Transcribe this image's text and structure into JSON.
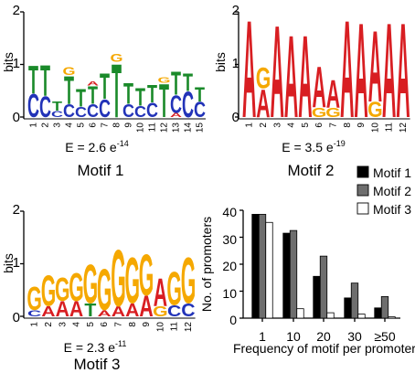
{
  "colors": {
    "A": "#d81e22",
    "C": "#2233b8",
    "G": "#f5a800",
    "T": "#1a8a2a",
    "bar_motif1": "#000000",
    "bar_motif2": "#6e6e6e",
    "bar_motif3": "#ffffff"
  },
  "logo_axis": {
    "label": "bits",
    "ticks": [
      "0",
      "1",
      "2"
    ]
  },
  "motifs": [
    {
      "name": "Motif 1",
      "evalue_base": "E = 2.6 e",
      "evalue_exp": "-14",
      "positions": [
        "1",
        "2",
        "3",
        "4",
        "5",
        "6",
        "7",
        "8",
        "9",
        "10",
        "11",
        "12",
        "13",
        "14",
        "15"
      ],
      "columns": [
        [
          [
            "C",
            0.45
          ],
          [
            "T",
            0.55
          ]
        ],
        [
          [
            "C",
            0.4
          ],
          [
            "T",
            0.6
          ]
        ],
        [
          [
            "C",
            0.12
          ],
          [
            "T",
            0.18
          ]
        ],
        [
          [
            "C",
            0.25
          ],
          [
            "T",
            0.55
          ],
          [
            "G",
            0.15
          ]
        ],
        [
          [
            "C",
            0.2
          ],
          [
            "T",
            0.35
          ]
        ],
        [
          [
            "C",
            0.25
          ],
          [
            "T",
            0.35
          ],
          [
            "A",
            0.08
          ]
        ],
        [
          [
            "C",
            0.35
          ],
          [
            "T",
            0.5
          ]
        ],
        [
          [
            "T",
            1.05
          ],
          [
            "G",
            0.15
          ]
        ],
        [
          [
            "C",
            0.25
          ],
          [
            "T",
            0.4
          ]
        ],
        [
          [
            "C",
            0.22
          ],
          [
            "T",
            0.35
          ]
        ],
        [
          [
            "C",
            0.28
          ],
          [
            "T",
            0.35
          ]
        ],
        [
          [
            "T",
            0.65
          ],
          [
            "G",
            0.1
          ]
        ],
        [
          [
            "A",
            0.08
          ],
          [
            "C",
            0.35
          ],
          [
            "T",
            0.45
          ]
        ],
        [
          [
            "C",
            0.5
          ],
          [
            "T",
            0.35
          ]
        ],
        [
          [
            "C",
            0.3
          ],
          [
            "T",
            0.28
          ]
        ]
      ]
    },
    {
      "name": "Motif 2",
      "evalue_base": "E = 3.5 e",
      "evalue_exp": "-19",
      "positions": [
        "1",
        "2",
        "3",
        "4",
        "5",
        "6",
        "7",
        "8",
        "9",
        "10",
        "11",
        "12"
      ],
      "columns": [
        [
          [
            "A",
            1.9
          ]
        ],
        [
          [
            "A",
            0.55
          ],
          [
            "G",
            0.4
          ]
        ],
        [
          [
            "A",
            1.8
          ]
        ],
        [
          [
            "A",
            1.6
          ]
        ],
        [
          [
            "A",
            1.6
          ]
        ],
        [
          [
            "G",
            0.18
          ],
          [
            "A",
            0.8
          ]
        ],
        [
          [
            "G",
            0.18
          ],
          [
            "A",
            0.55
          ]
        ],
        [
          [
            "A",
            1.9
          ]
        ],
        [
          [
            "A",
            1.85
          ]
        ],
        [
          [
            "G",
            0.3
          ],
          [
            "A",
            1.4
          ]
        ],
        [
          [
            "A",
            1.85
          ]
        ],
        [
          [
            "A",
            1.85
          ]
        ]
      ]
    },
    {
      "name": "Motif 3",
      "evalue_base": "E =  2.3 e",
      "evalue_exp": "-11",
      "positions": [
        "1",
        "2",
        "3",
        "4",
        "5",
        "6",
        "7",
        "8",
        "9",
        "10",
        "11",
        "12"
      ],
      "columns": [
        [
          [
            "C",
            0.12
          ],
          [
            "G",
            0.45
          ]
        ],
        [
          [
            "A",
            0.2
          ],
          [
            "G",
            0.6
          ]
        ],
        [
          [
            "A",
            0.3
          ],
          [
            "G",
            0.45
          ]
        ],
        [
          [
            "A",
            0.3
          ],
          [
            "G",
            0.55
          ]
        ],
        [
          [
            "T",
            0.25
          ],
          [
            "G",
            0.75
          ]
        ],
        [
          [
            "A",
            0.12
          ],
          [
            "G",
            0.8
          ]
        ],
        [
          [
            "A",
            0.2
          ],
          [
            "G",
            1.1
          ]
        ],
        [
          [
            "A",
            0.25
          ],
          [
            "G",
            0.9
          ]
        ],
        [
          [
            "A",
            0.4
          ],
          [
            "G",
            0.8
          ]
        ],
        [
          [
            "G",
            0.2
          ],
          [
            "A",
            0.55
          ]
        ],
        [
          [
            "C",
            0.22
          ],
          [
            "G",
            0.65
          ]
        ],
        [
          [
            "C",
            0.25
          ],
          [
            "G",
            0.9
          ]
        ]
      ]
    }
  ],
  "chart_data": {
    "type": "bar",
    "xlabel": "Frequency of motif per promoter",
    "ylabel": "No. of promoters",
    "ylim": [
      0,
      40
    ],
    "yticks": [
      "0",
      "10",
      "20",
      "30",
      "40"
    ],
    "categories": [
      "1",
      "10",
      "20",
      "30",
      "≥50"
    ],
    "series": [
      {
        "name": "Motif 1",
        "values": [
          38.5,
          31.5,
          15.5,
          7.5,
          3.8
        ]
      },
      {
        "name": "Motif 2",
        "values": [
          38.5,
          32.5,
          23,
          13,
          8
        ]
      },
      {
        "name": "Motif 3",
        "values": [
          35.5,
          3.5,
          2,
          1.5,
          0.5
        ]
      }
    ],
    "legend": "top-right"
  }
}
